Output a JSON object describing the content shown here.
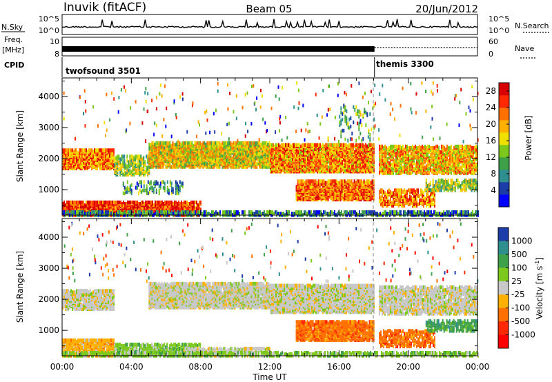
{
  "header": {
    "station": "Inuvik (fitACF)",
    "beam": "Beam 05",
    "date": "20/Jun/2012"
  },
  "aux": {
    "nsky_label": "N.Sky",
    "nsky_ticks": [
      "10^5",
      "10^0"
    ],
    "nsearch_label": "N.Search",
    "nsearch_ticks": [
      "10^5",
      "10^0"
    ],
    "freq_label_1": "Freq.",
    "freq_label_2": "[MHz]",
    "freq_ticks": [
      "10",
      "8"
    ],
    "nave_label": "Nave",
    "nave_ticks": [
      "60",
      "0"
    ],
    "cpid_label": "CPID",
    "cpid_segments": [
      {
        "name": "twofsound 3501",
        "start_hour": 0,
        "end_hour": 18.05
      },
      {
        "name": "themis 3300",
        "start_hour": 18.05,
        "end_hour": 24
      }
    ]
  },
  "chart_data": [
    {
      "type": "heatmap",
      "title": "",
      "xlabel": "Time UT",
      "ylabel": "Slant Range [km]",
      "x_ticks": [
        "00:00",
        "04:00",
        "08:00",
        "12:00",
        "16:00",
        "20:00",
        "00:00"
      ],
      "xlim_hours": [
        0,
        24
      ],
      "y_ticks": [
        1000,
        2000,
        3000,
        4000
      ],
      "ylim": [
        180,
        4600
      ],
      "colorbar": {
        "label": "Power [dB]",
        "ticks": [
          4,
          8,
          12,
          16,
          20,
          24,
          28
        ],
        "range": [
          0,
          30
        ],
        "colors": [
          "#0000ff",
          "#1c3ca8",
          "#2f8f8f",
          "#3fa04a",
          "#7cc81c",
          "#f0e000",
          "#ffb000",
          "#ff7000",
          "#ff2800",
          "#d80000"
        ]
      },
      "bands": [
        {
          "t0": 0.0,
          "t1": 3.0,
          "r0": 1700,
          "r1": 2300,
          "v": 22,
          "d": 0.85
        },
        {
          "t0": 3.0,
          "t1": 5.0,
          "r0": 1500,
          "r1": 2100,
          "v": 14,
          "d": 0.55
        },
        {
          "t0": 5.0,
          "t1": 12.0,
          "r0": 1750,
          "r1": 2550,
          "v": 17,
          "d": 0.85
        },
        {
          "t0": 12.0,
          "t1": 18.0,
          "r0": 1600,
          "r1": 2500,
          "v": 21,
          "d": 0.9
        },
        {
          "t0": 18.3,
          "t1": 24.0,
          "r0": 1550,
          "r1": 2450,
          "v": 19,
          "d": 0.7
        },
        {
          "t0": 0.0,
          "t1": 8.0,
          "r0": 200,
          "r1": 650,
          "v": 26,
          "d": 0.85
        },
        {
          "t0": 0.0,
          "t1": 24.0,
          "r0": 200,
          "r1": 330,
          "v": 8,
          "d": 0.7
        },
        {
          "t0": 3.5,
          "t1": 7.0,
          "r0": 900,
          "r1": 1300,
          "v": 9,
          "d": 0.25
        },
        {
          "t0": 13.5,
          "t1": 18.0,
          "r0": 700,
          "r1": 1300,
          "v": 23,
          "d": 0.8
        },
        {
          "t0": 18.3,
          "t1": 21.5,
          "r0": 500,
          "r1": 1000,
          "v": 22,
          "d": 0.55
        },
        {
          "t0": 21.0,
          "t1": 24.0,
          "r0": 1000,
          "r1": 1350,
          "v": 14,
          "d": 0.55
        },
        {
          "t0": 16.0,
          "t1": 18.0,
          "r0": 2600,
          "r1": 3800,
          "v": 10,
          "d": 0.1
        }
      ]
    },
    {
      "type": "heatmap",
      "title": "",
      "xlabel": "Time UT",
      "ylabel": "Slant Range [km]",
      "x_ticks": [
        "00:00",
        "04:00",
        "08:00",
        "12:00",
        "16:00",
        "20:00",
        "00:00"
      ],
      "xlim_hours": [
        0,
        24
      ],
      "y_ticks": [
        1000,
        2000,
        3000,
        4000
      ],
      "ylim": [
        180,
        4600
      ],
      "colorbar": {
        "label": "Velocity [m s^-1]",
        "ticks": [
          "1000",
          "500",
          "100",
          "25",
          "-25",
          "-100",
          "-500",
          "-1000"
        ],
        "colors": [
          "#1c3ca8",
          "#2f8f8f",
          "#3fa04a",
          "#7cc81c",
          "#c8c8c8",
          "#ffb000",
          "#ff7000",
          "#ff2800",
          "#ff0000"
        ]
      },
      "bands": [
        {
          "t0": 0.0,
          "t1": 3.0,
          "r0": 1700,
          "r1": 2300,
          "v": 4,
          "d": 0.8
        },
        {
          "t0": 5.0,
          "t1": 12.0,
          "r0": 1750,
          "r1": 2550,
          "v": 4,
          "d": 0.85
        },
        {
          "t0": 12.0,
          "t1": 18.0,
          "r0": 1600,
          "r1": 2500,
          "v": 4,
          "d": 0.9
        },
        {
          "t0": 18.3,
          "t1": 24.0,
          "r0": 1550,
          "r1": 2450,
          "v": 4,
          "d": 0.7
        },
        {
          "t0": 0.0,
          "t1": 3.0,
          "r0": 200,
          "r1": 700,
          "v": 5,
          "d": 0.8
        },
        {
          "t0": 3.0,
          "t1": 8.0,
          "r0": 200,
          "r1": 600,
          "v": 3,
          "d": 0.7
        },
        {
          "t0": 7.0,
          "t1": 12.0,
          "r0": 200,
          "r1": 450,
          "v": 4,
          "d": 0.6
        },
        {
          "t0": 13.5,
          "t1": 18.0,
          "r0": 700,
          "r1": 1300,
          "v": 6,
          "d": 0.8
        },
        {
          "t0": 18.3,
          "t1": 21.5,
          "r0": 500,
          "r1": 1000,
          "v": 6,
          "d": 0.55
        },
        {
          "t0": 21.0,
          "t1": 24.0,
          "r0": 1000,
          "r1": 1350,
          "v": 2,
          "d": 0.55
        },
        {
          "t0": 0.0,
          "t1": 24.0,
          "r0": 200,
          "r1": 330,
          "v": 3,
          "d": 0.6
        }
      ]
    }
  ]
}
